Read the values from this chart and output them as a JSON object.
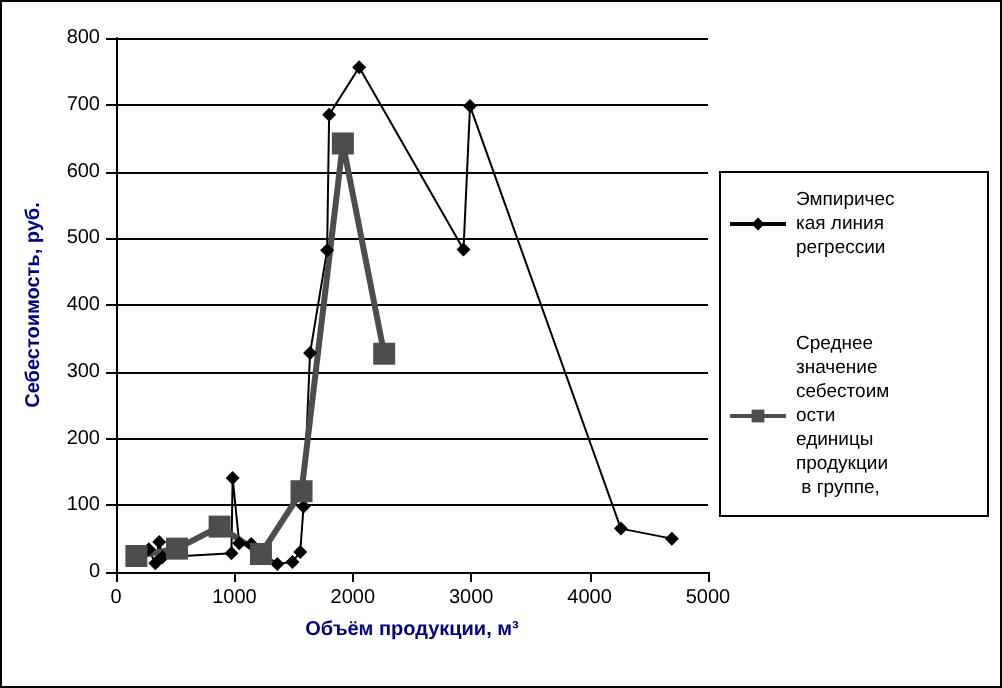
{
  "chart_data": {
    "type": "line",
    "xlabel": "Объём продукции, м³",
    "ylabel": "Себестоимость, руб.",
    "xlim": [
      0,
      5000
    ],
    "xticks": [
      0,
      1000,
      2000,
      3000,
      4000,
      5000
    ],
    "ylim": [
      0,
      800
    ],
    "yticks": [
      0,
      100,
      200,
      300,
      400,
      500,
      600,
      700,
      800
    ],
    "grid": "y",
    "legend": "right",
    "line_style": "solid",
    "series": [
      {
        "name": "Эмпирическая линия регрессии",
        "color": "#000000",
        "marker": "diamond",
        "x": [
          277,
          332,
          365,
          393,
          975,
          985,
          1041,
          1141,
          1362,
          1490,
          1556,
          1584,
          1639,
          1783,
          1800,
          2054,
          2935,
          2990,
          4264,
          4695
        ],
        "values": [
          34,
          13,
          45,
          22,
          28,
          141,
          43,
          42,
          12,
          15,
          30,
          98,
          328,
          482,
          685,
          756,
          483,
          698,
          65,
          50
        ]
      },
      {
        "name": "Среднее значение себестоимости единицы продукции в группе,",
        "color": "#4d4d4d",
        "marker": "square",
        "x": [
          172,
          515,
          875,
          1224,
          1567,
          1916,
          2265
        ],
        "values": [
          24,
          35,
          68,
          27,
          121,
          642,
          327
        ]
      }
    ]
  }
}
